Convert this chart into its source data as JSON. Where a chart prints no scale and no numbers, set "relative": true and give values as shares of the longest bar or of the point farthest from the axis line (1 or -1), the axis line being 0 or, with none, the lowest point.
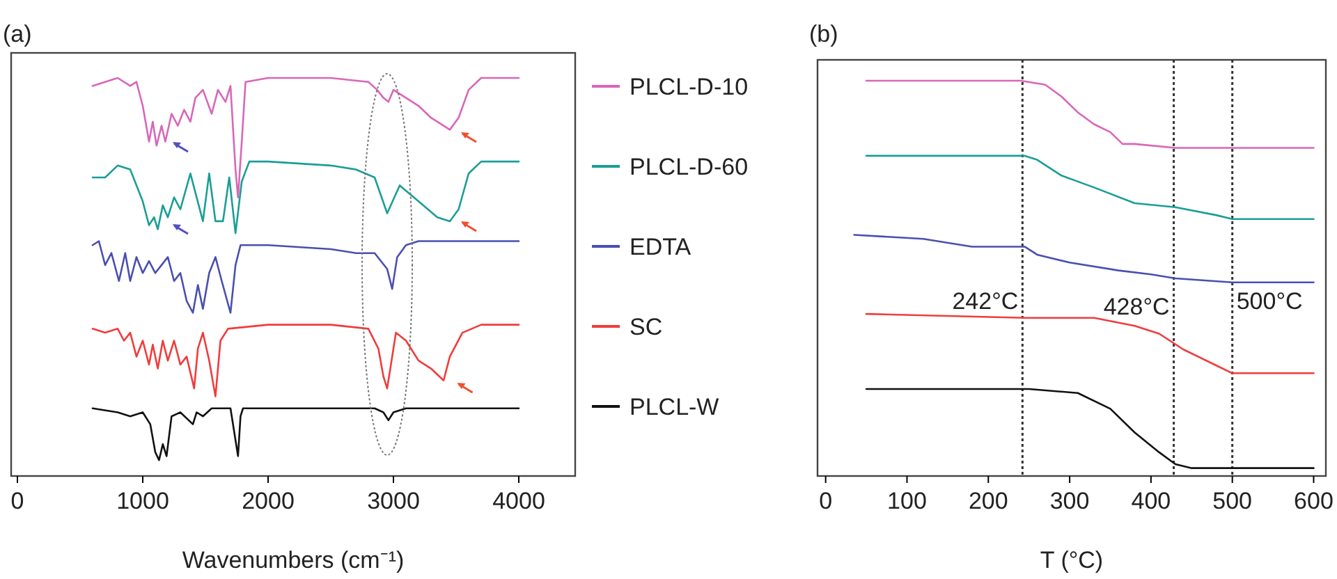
{
  "chart_data": [
    {
      "type": "line",
      "title": "(a)",
      "xlabel": "Wavenumbers (cm⁻¹)",
      "relative": true,
      "xlim": [
        -50,
        4450
      ],
      "xticks": [
        0,
        1000,
        2000,
        3000,
        4000
      ],
      "legend": "right",
      "grid": false,
      "series": [
        {
          "name": "PLCL-D-10",
          "color": "#d966b8",
          "x": [
            600,
            700,
            800,
            900,
            950,
            1000,
            1050,
            1080,
            1110,
            1150,
            1180,
            1230,
            1280,
            1330,
            1380,
            1420,
            1480,
            1550,
            1600,
            1660,
            1700,
            1740,
            1760,
            1790,
            1820,
            2000,
            2500,
            2800,
            2870,
            2920,
            2960,
            3000,
            3100,
            3200,
            3300,
            3400,
            3450,
            3520,
            3600,
            3700,
            4000
          ],
          "values": [
            0.98,
            0.99,
            1.0,
            0.98,
            0.99,
            0.93,
            0.84,
            0.89,
            0.83,
            0.88,
            0.84,
            0.91,
            0.88,
            0.92,
            0.89,
            0.95,
            0.97,
            0.91,
            0.97,
            0.94,
            0.98,
            0.77,
            0.7,
            0.84,
            0.99,
            1.0,
            1.0,
            0.99,
            0.97,
            0.95,
            0.94,
            0.97,
            0.95,
            0.93,
            0.9,
            0.88,
            0.87,
            0.9,
            0.97,
            1.0,
            1.0
          ]
        },
        {
          "name": "PLCL-D-60",
          "color": "#1a9e96",
          "x": [
            600,
            700,
            800,
            900,
            1000,
            1050,
            1090,
            1120,
            1160,
            1200,
            1250,
            1300,
            1380,
            1430,
            1480,
            1530,
            1580,
            1640,
            1690,
            1740,
            1790,
            1850,
            2000,
            2500,
            2700,
            2850,
            2950,
            3050,
            3200,
            3350,
            3450,
            3520,
            3600,
            3700,
            4000
          ],
          "values": [
            0.75,
            0.75,
            0.78,
            0.77,
            0.69,
            0.63,
            0.65,
            0.62,
            0.68,
            0.65,
            0.7,
            0.67,
            0.76,
            0.7,
            0.64,
            0.76,
            0.64,
            0.64,
            0.75,
            0.61,
            0.74,
            0.79,
            0.79,
            0.78,
            0.77,
            0.75,
            0.66,
            0.73,
            0.69,
            0.65,
            0.64,
            0.67,
            0.76,
            0.79,
            0.79
          ]
        },
        {
          "name": "EDTA",
          "color": "#4a4fb0",
          "x": [
            600,
            650,
            700,
            750,
            810,
            860,
            900,
            950,
            1000,
            1050,
            1100,
            1150,
            1200,
            1250,
            1300,
            1350,
            1400,
            1440,
            1480,
            1530,
            1580,
            1630,
            1700,
            1740,
            1780,
            2000,
            2500,
            2700,
            2850,
            2950,
            2990,
            3030,
            3100,
            3200,
            4000
          ],
          "values": [
            0.58,
            0.59,
            0.53,
            0.56,
            0.49,
            0.56,
            0.49,
            0.55,
            0.51,
            0.54,
            0.51,
            0.53,
            0.55,
            0.49,
            0.51,
            0.44,
            0.41,
            0.48,
            0.42,
            0.51,
            0.55,
            0.49,
            0.41,
            0.53,
            0.58,
            0.58,
            0.57,
            0.56,
            0.56,
            0.52,
            0.47,
            0.55,
            0.58,
            0.59,
            0.59
          ]
        },
        {
          "name": "SC",
          "color": "#f03c3c",
          "x": [
            600,
            700,
            800,
            850,
            900,
            950,
            1000,
            1050,
            1080,
            1120,
            1160,
            1200,
            1250,
            1300,
            1350,
            1410,
            1440,
            1480,
            1530,
            1580,
            1620,
            1680,
            2000,
            2500,
            2800,
            2880,
            2920,
            2950,
            2980,
            3020,
            3100,
            3200,
            3300,
            3400,
            3450,
            3550,
            3700,
            4000
          ],
          "values": [
            0.37,
            0.36,
            0.37,
            0.34,
            0.36,
            0.3,
            0.34,
            0.28,
            0.33,
            0.27,
            0.34,
            0.29,
            0.34,
            0.28,
            0.3,
            0.22,
            0.32,
            0.36,
            0.29,
            0.2,
            0.34,
            0.37,
            0.38,
            0.38,
            0.37,
            0.32,
            0.25,
            0.22,
            0.28,
            0.36,
            0.34,
            0.29,
            0.27,
            0.24,
            0.3,
            0.36,
            0.38,
            0.38
          ]
        },
        {
          "name": "PLCL-W",
          "color": "#111111",
          "x": [
            600,
            800,
            900,
            1000,
            1060,
            1100,
            1130,
            1160,
            1190,
            1230,
            1300,
            1400,
            1430,
            1480,
            1550,
            1700,
            1740,
            1760,
            1780,
            1800,
            2500,
            2850,
            2920,
            2960,
            3000,
            3100,
            4000
          ],
          "values": [
            0.17,
            0.16,
            0.15,
            0.16,
            0.13,
            0.06,
            0.04,
            0.08,
            0.05,
            0.15,
            0.16,
            0.13,
            0.16,
            0.15,
            0.17,
            0.17,
            0.09,
            0.05,
            0.15,
            0.17,
            0.17,
            0.17,
            0.16,
            0.14,
            0.16,
            0.17,
            0.17
          ]
        }
      ]
    },
    {
      "type": "line",
      "title": "(b)",
      "xlabel": "T (°C)",
      "relative": true,
      "xlim": [
        -10,
        615
      ],
      "xticks": [
        0,
        100,
        200,
        300,
        400,
        500,
        600
      ],
      "grid": false,
      "ref_lines": [
        {
          "axis": "x",
          "value": 242,
          "label": "242°C",
          "color": "#333333",
          "line_style": "dotted"
        },
        {
          "axis": "x",
          "value": 428,
          "label": "428°C",
          "color": "#333333",
          "line_style": "dotted"
        },
        {
          "axis": "x",
          "value": 500,
          "label": "500°C",
          "color": "#333333",
          "line_style": "dotted"
        }
      ],
      "series": [
        {
          "color": "#d966b8",
          "x": [
            50,
            240,
            270,
            290,
            310,
            330,
            350,
            365,
            380,
            430,
            500,
            600
          ],
          "values": [
            1.0,
            1.0,
            0.99,
            0.96,
            0.92,
            0.89,
            0.87,
            0.84,
            0.84,
            0.83,
            0.83,
            0.83
          ]
        },
        {
          "color": "#1a9e96",
          "x": [
            50,
            245,
            260,
            290,
            330,
            380,
            430,
            480,
            500,
            600
          ],
          "values": [
            0.81,
            0.81,
            0.8,
            0.76,
            0.73,
            0.69,
            0.68,
            0.66,
            0.65,
            0.65
          ]
        },
        {
          "color": "#4a4fb0",
          "x": [
            35,
            120,
            180,
            245,
            260,
            300,
            360,
            400,
            430,
            500,
            600
          ],
          "values": [
            0.61,
            0.6,
            0.58,
            0.58,
            0.56,
            0.54,
            0.52,
            0.51,
            0.5,
            0.49,
            0.49
          ]
        },
        {
          "color": "#f03c3c",
          "x": [
            50,
            245,
            330,
            380,
            410,
            440,
            480,
            500,
            600
          ],
          "values": [
            0.41,
            0.4,
            0.4,
            0.38,
            0.36,
            0.32,
            0.28,
            0.26,
            0.26
          ]
        },
        {
          "color": "#111111",
          "x": [
            50,
            250,
            310,
            350,
            380,
            410,
            430,
            450,
            600
          ],
          "values": [
            0.22,
            0.22,
            0.21,
            0.17,
            0.11,
            0.06,
            0.03,
            0.02,
            0.02
          ]
        }
      ]
    }
  ]
}
